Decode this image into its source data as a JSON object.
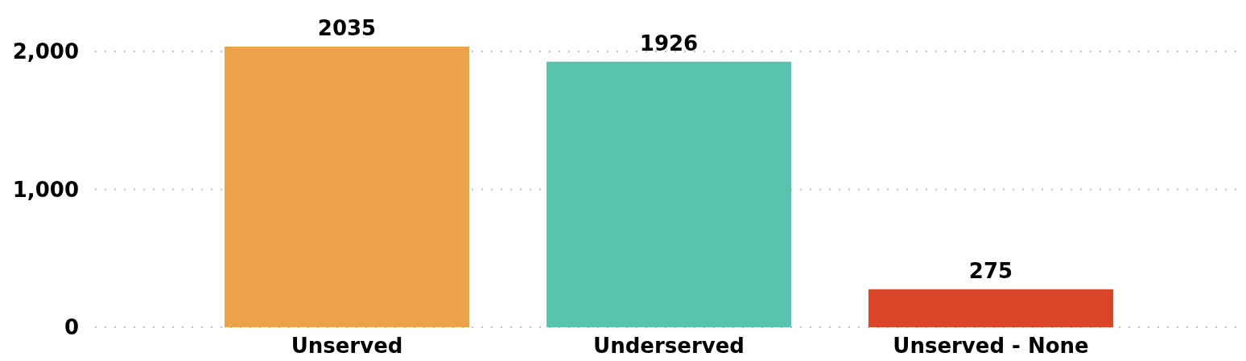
{
  "chart_data": {
    "type": "bar",
    "categories": [
      "Unserved",
      "Underserved",
      "Unserved - None"
    ],
    "values": [
      2035,
      1926,
      275
    ],
    "colors": [
      "#eca248",
      "#58c4ae",
      "#da4528"
    ],
    "ylim": [
      0,
      2035
    ],
    "yticks": [
      0,
      {
        "value": 1000,
        "label": "1,000"
      },
      {
        "value": 2000,
        "label": "2,000"
      }
    ],
    "grid": "y",
    "data_labels": true
  }
}
